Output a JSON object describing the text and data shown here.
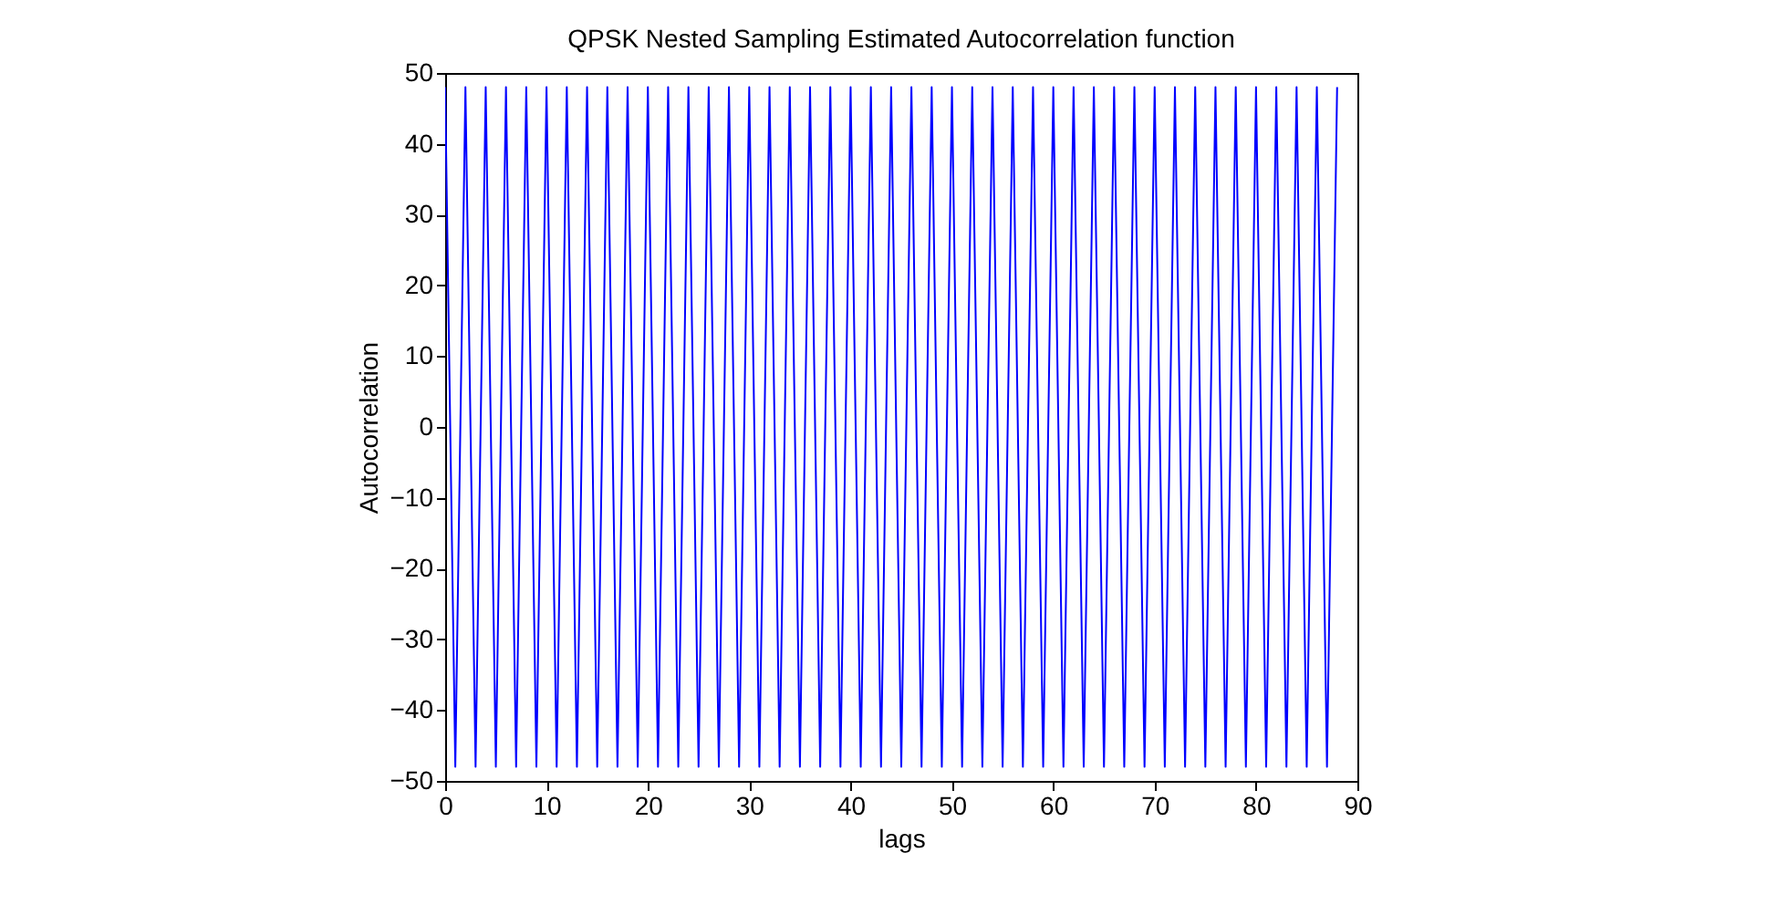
{
  "chart_data": {
    "type": "line",
    "title": "QPSK Nested Sampling Estimated Autocorrelation function",
    "xlabel": "lags",
    "ylabel": "Autocorrelation",
    "x": [
      0,
      1,
      2,
      3,
      4,
      5,
      6,
      7,
      8,
      9,
      10,
      11,
      12,
      13,
      14,
      15,
      16,
      17,
      18,
      19,
      20,
      21,
      22,
      23,
      24,
      25,
      26,
      27,
      28,
      29,
      30,
      31,
      32,
      33,
      34,
      35,
      36,
      37,
      38,
      39,
      40,
      41,
      42,
      43,
      44,
      45,
      46,
      47,
      48,
      49,
      50,
      51,
      52,
      53,
      54,
      55,
      56,
      57,
      58,
      59,
      60,
      61,
      62,
      63,
      64,
      65,
      66,
      67,
      68,
      69,
      70,
      71,
      72,
      73,
      74,
      75,
      76,
      77,
      78,
      79,
      80,
      81,
      82,
      83,
      84,
      85,
      86,
      87,
      88
    ],
    "series": [
      {
        "color": "#0000ff",
        "values": [
          48,
          -48,
          48,
          -48,
          48,
          -48,
          48,
          -48,
          48,
          -48,
          48,
          -48,
          48,
          -48,
          48,
          -48,
          48,
          -48,
          48,
          -48,
          48,
          -48,
          48,
          -48,
          48,
          -48,
          48,
          -48,
          48,
          -48,
          48,
          -48,
          48,
          -48,
          48,
          -48,
          48,
          -48,
          48,
          -48,
          48,
          -48,
          48,
          -48,
          48,
          -48,
          48,
          -48,
          48,
          -48,
          48,
          -48,
          48,
          -48,
          48,
          -48,
          48,
          -48,
          48,
          -48,
          48,
          -48,
          48,
          -48,
          48,
          -48,
          48,
          -48,
          48,
          -48,
          48,
          -48,
          48,
          -48,
          48,
          -48,
          48,
          -48,
          48,
          -48,
          48,
          -48,
          48,
          -48,
          48,
          -48,
          48,
          -48,
          48
        ]
      }
    ],
    "xlim": [
      0,
      90
    ],
    "xticks": [
      0,
      10,
      20,
      30,
      40,
      50,
      60,
      70,
      80,
      90
    ],
    "ylim": [
      -50,
      50
    ],
    "yticks": [
      -50,
      -40,
      -30,
      -20,
      -10,
      0,
      10,
      20,
      30,
      40,
      50
    ],
    "grid": false,
    "legend": false,
    "marker": "none",
    "line_style": "solid"
  }
}
